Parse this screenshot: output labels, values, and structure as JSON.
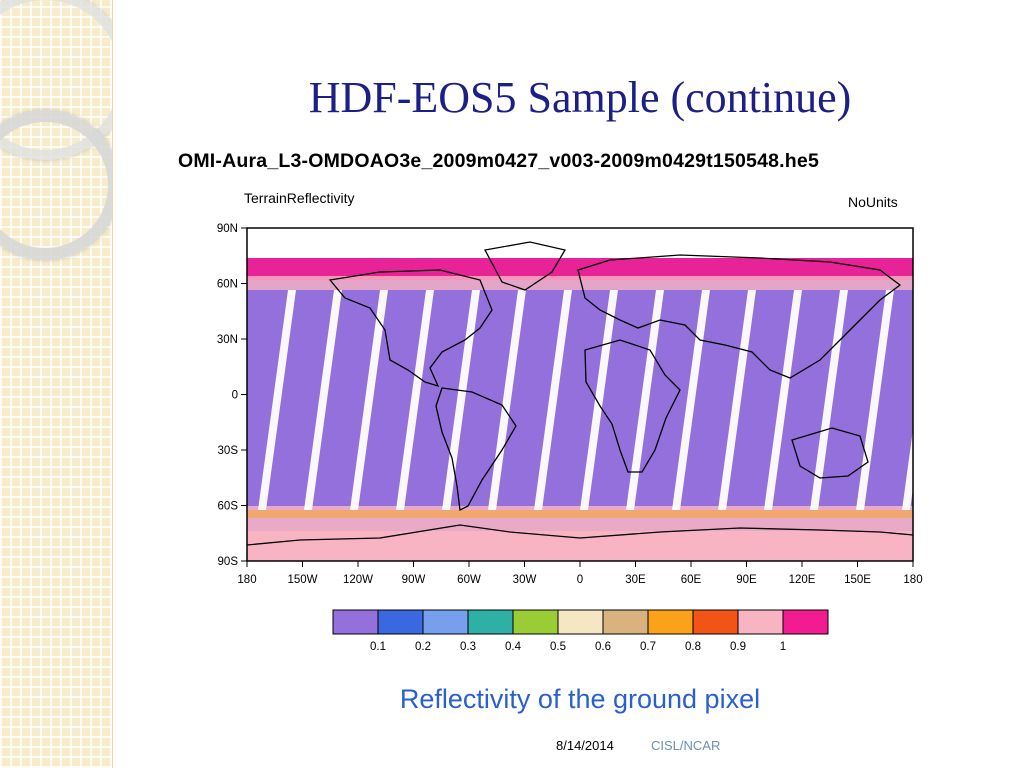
{
  "slide": {
    "title": "HDF-EOS5 Sample (continue)",
    "caption": "Reflectivity of the ground pixel",
    "footer": {
      "date": "8/14/2014",
      "org": "CISL/NCAR"
    }
  },
  "plot": {
    "file_title": "OMI-Aura_L3-OMDOAO3e_2009m0427_v003-2009m0429t150548.he5",
    "variable": "TerrainReflectivity",
    "units": "NoUnits",
    "lat_ticks": [
      "90N",
      "60N",
      "30N",
      "0",
      "30S",
      "60S",
      "90S"
    ],
    "lon_ticks": [
      "180",
      "150W",
      "120W",
      "90W",
      "60W",
      "30W",
      "0",
      "30E",
      "60E",
      "90E",
      "120E",
      "150E",
      "180"
    ],
    "colorbar": {
      "colors": [
        "#9370db",
        "#3b68e0",
        "#76a0ee",
        "#2eb0a6",
        "#9acc36",
        "#f4e7c2",
        "#d9b27f",
        "#fba21a",
        "#f25317",
        "#f8b4c3",
        "#f21b8f"
      ],
      "labels": [
        "0.1",
        "0.2",
        "0.3",
        "0.4",
        "0.5",
        "0.6",
        "0.7",
        "0.8",
        "0.9",
        "1"
      ]
    }
  }
}
